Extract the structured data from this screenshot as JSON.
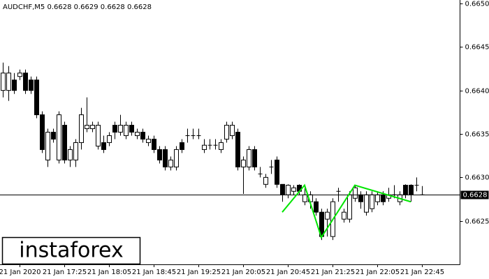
{
  "chart_data": {
    "type": "candlestick",
    "title": "AUDCHF,M5  0.6628 0.6629 0.6628 0.6628",
    "watermark": "instaforex",
    "categories": [
      null,
      null,
      null,
      "21 Jan 2020",
      null,
      null,
      null,
      null,
      null,
      null,
      null,
      "21 Jan 17:25",
      null,
      null,
      null,
      null,
      null,
      null,
      null,
      "21 Jan 18:05",
      null,
      null,
      null,
      null,
      null,
      null,
      null,
      "21 Jan 18:45",
      null,
      null,
      null,
      null,
      null,
      null,
      null,
      "21 Jan 19:25",
      null,
      null,
      null,
      null,
      null,
      null,
      null,
      "21 Jan 20:05",
      null,
      null,
      null,
      null,
      null,
      null,
      null,
      "21 Jan 20:45",
      null,
      null,
      null,
      null,
      null,
      null,
      null,
      "21 Jan 21:25",
      null,
      null,
      null,
      null,
      null,
      null,
      null,
      "21 Jan 22:05",
      null,
      null,
      null,
      null,
      null,
      null,
      null,
      "21 Jan 22:45"
    ],
    "open": [
      0.664,
      0.664,
      0.66412,
      0.66416,
      0.6642,
      0.66412,
      0.66412,
      0.66372,
      0.6632,
      0.66352,
      0.6632,
      0.6636,
      0.6632,
      0.6632,
      0.6634,
      0.66356,
      0.66356,
      0.66336,
      0.6634,
      0.6634,
      0.6636,
      0.66352,
      0.66348,
      0.6636,
      0.66348,
      0.66352,
      0.6634,
      0.66344,
      0.66332,
      0.66332,
      0.66312,
      0.66312,
      0.6634,
      0.66348,
      0.66348,
      0.66348,
      0.66332,
      0.66337,
      0.66337,
      0.66332,
      0.66344,
      0.66348,
      0.66352,
      0.66312,
      0.66312,
      0.66332,
      0.66304,
      0.66292,
      0.66312,
      0.6632,
      0.66292,
      0.6628,
      0.66284,
      0.66291,
      0.66272,
      0.66272,
      0.66272,
      0.6626,
      0.66252,
      0.66232,
      0.66284,
      0.66252,
      0.66252,
      0.66276,
      0.6628,
      0.6626,
      0.66264,
      0.66272,
      0.6628,
      0.66276,
      0.6628,
      0.66272,
      0.66291,
      0.66291,
      0.66291,
      0.6628
    ],
    "high": [
      0.66432,
      0.66428,
      0.6642,
      0.66424,
      0.66424,
      0.66416,
      0.66416,
      0.66376,
      0.66356,
      0.66356,
      0.66376,
      0.66364,
      0.66336,
      0.66344,
      0.6638,
      0.66392,
      0.66364,
      0.66364,
      0.66348,
      0.66352,
      0.66364,
      0.66372,
      0.66364,
      0.66364,
      0.66356,
      0.66356,
      0.66348,
      0.66348,
      0.66336,
      0.66336,
      0.66324,
      0.66336,
      0.66344,
      0.66356,
      0.66356,
      0.66356,
      0.66344,
      0.66344,
      0.66344,
      0.66344,
      0.66364,
      0.66364,
      0.66356,
      0.66324,
      0.66336,
      0.66336,
      0.66312,
      0.66304,
      0.6632,
      0.66324,
      0.66292,
      0.66292,
      0.66291,
      0.66292,
      0.66291,
      0.66284,
      0.66276,
      0.66264,
      0.66264,
      0.66276,
      0.66288,
      0.66264,
      0.66284,
      0.66291,
      0.66284,
      0.66284,
      0.66284,
      0.66284,
      0.66284,
      0.66288,
      0.66291,
      0.66284,
      0.66292,
      0.66292,
      0.663,
      0.6629
    ],
    "low": [
      0.66392,
      0.66388,
      0.66396,
      0.66412,
      0.66396,
      0.66396,
      0.66368,
      0.66328,
      0.66312,
      0.6634,
      0.66316,
      0.66316,
      0.66312,
      0.66312,
      0.66332,
      0.66352,
      0.66352,
      0.66332,
      0.66328,
      0.66336,
      0.66344,
      0.66348,
      0.66344,
      0.66348,
      0.66344,
      0.6634,
      0.66336,
      0.66328,
      0.66316,
      0.66308,
      0.66308,
      0.66308,
      0.66328,
      0.6634,
      0.66344,
      0.66344,
      0.66328,
      0.66332,
      0.66332,
      0.66328,
      0.6634,
      0.66344,
      0.66308,
      0.66281,
      0.66308,
      0.66308,
      0.663,
      0.66288,
      0.66304,
      0.66288,
      0.66272,
      0.66276,
      0.6628,
      0.6628,
      0.66268,
      0.66264,
      0.66256,
      0.66228,
      0.66232,
      0.66228,
      0.66272,
      0.66248,
      0.66248,
      0.66272,
      0.66264,
      0.66256,
      0.6626,
      0.66268,
      0.66268,
      0.66272,
      0.66276,
      0.66268,
      0.66276,
      0.66272,
      0.66284,
      0.6628
    ],
    "close": [
      0.6642,
      0.6642,
      0.664,
      0.6642,
      0.664,
      0.664,
      0.66372,
      0.66332,
      0.66352,
      0.66344,
      0.66372,
      0.6632,
      0.66332,
      0.6634,
      0.66372,
      0.6636,
      0.6636,
      0.6636,
      0.66332,
      0.66348,
      0.66352,
      0.6636,
      0.6636,
      0.66352,
      0.66352,
      0.66344,
      0.66344,
      0.66332,
      0.6632,
      0.66312,
      0.6632,
      0.66332,
      0.66332,
      0.66348,
      0.66348,
      0.66348,
      0.66337,
      0.66337,
      0.66337,
      0.6634,
      0.6636,
      0.6636,
      0.66312,
      0.6632,
      0.66332,
      0.66312,
      0.66304,
      0.663,
      0.66312,
      0.66292,
      0.6628,
      0.66291,
      0.66288,
      0.66284,
      0.6628,
      0.6628,
      0.6626,
      0.66232,
      0.6626,
      0.66272,
      0.66284,
      0.6626,
      0.6628,
      0.66288,
      0.66272,
      0.6628,
      0.6628,
      0.6628,
      0.66272,
      0.6628,
      0.6628,
      0.6628,
      0.6628,
      0.6628,
      0.66291,
      0.6628
    ],
    "up_color": "#ffffff",
    "down_color": "#000000",
    "wick_color": "#000000",
    "last_price": 0.6628,
    "pattern": {
      "color": "#00e600",
      "x": [
        50,
        54,
        57,
        63,
        73
      ],
      "values": [
        0.6626,
        0.66291,
        0.66231,
        0.66291,
        0.66272
      ]
    },
    "ylim": [
      0.662,
      0.66504
    ],
    "yticks": [
      0.6625,
      {
        "value": 0.663,
        "label": "0.6630"
      },
      0.6635,
      {
        "value": 0.664,
        "label": "0.6640"
      },
      0.6645,
      {
        "value": 0.665,
        "label": "0.6650"
      }
    ],
    "grid": false
  }
}
